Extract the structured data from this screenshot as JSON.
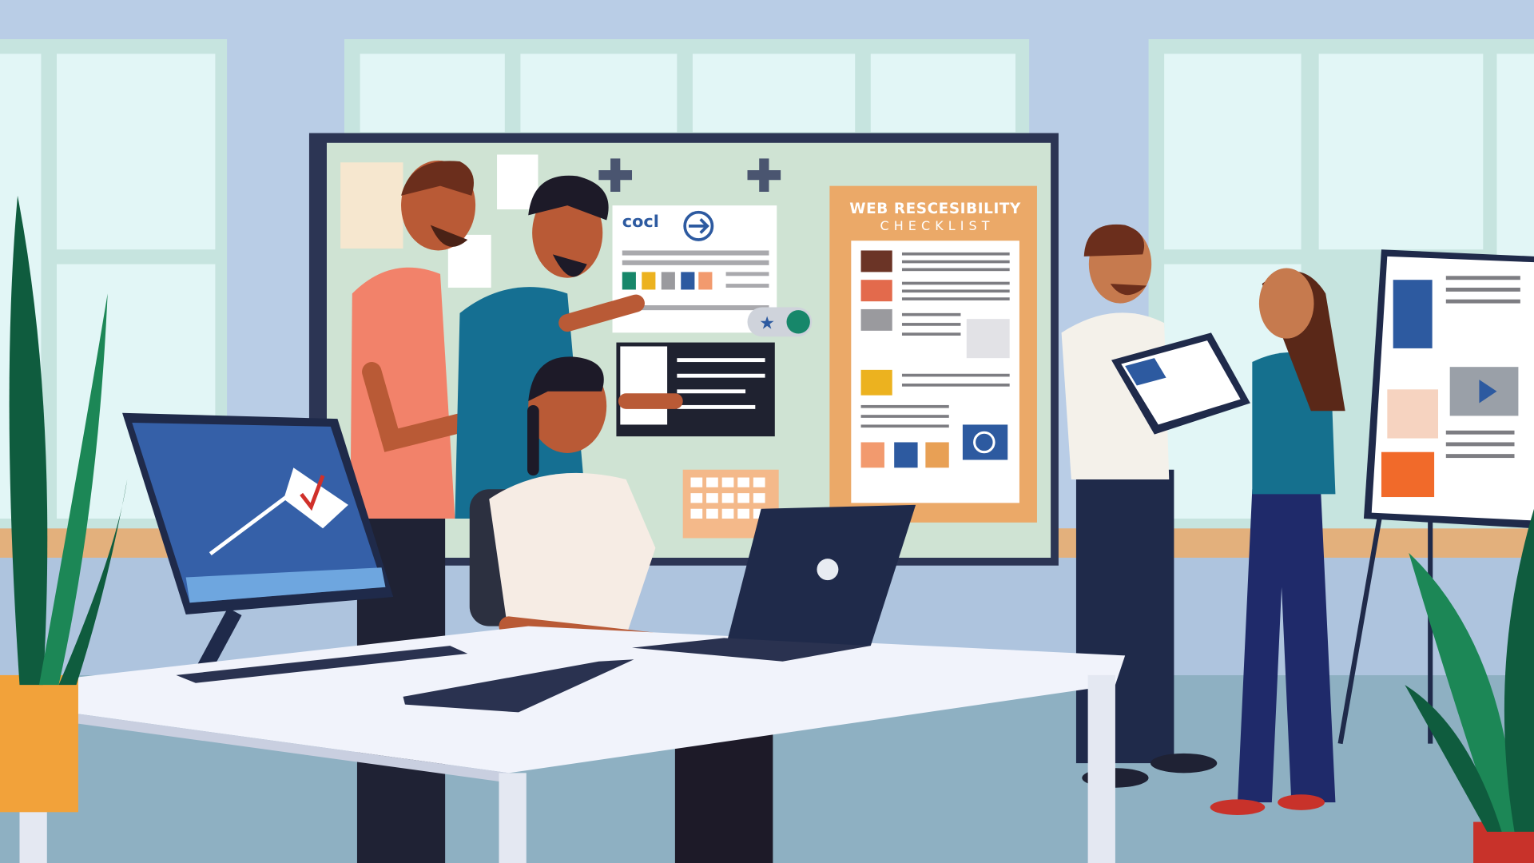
{
  "scene": {
    "description_kind": "flat vector illustration of an office team reviewing accessibility materials",
    "checklist_poster": {
      "title": "WEB RESCESIBILITY",
      "subtitle": "CHECKLIST"
    },
    "board_card": {
      "label": "cocl"
    },
    "colors": {
      "wall": "#b9cde6",
      "window": "#d6f0f2",
      "board": "#cfe3d3",
      "board_frame": "#2c3554",
      "poster": "#eba968",
      "desk": "#f1f3fb",
      "floor": "#8eb0c2",
      "navy": "#1f2a4a"
    }
  }
}
